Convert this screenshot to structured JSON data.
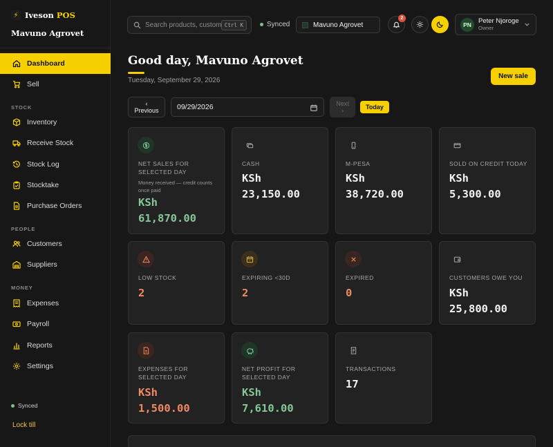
{
  "app": {
    "brand_first": "Iveson",
    "brand_second": "POS",
    "logo_glyph": "⚡",
    "store_name": "Mavuno Agrovet"
  },
  "colors": {
    "accent": "#f7d000",
    "green": "#86c79a",
    "orange": "#ef8a62",
    "background": "#171717",
    "card": "#222222"
  },
  "sidebar": {
    "dashboard": "Dashboard",
    "sell": "Sell",
    "sections": {
      "stock": "STOCK",
      "people": "PEOPLE",
      "money": "MONEY"
    },
    "stock_items": [
      "Inventory",
      "Receive Stock",
      "Stock Log",
      "Stocktake",
      "Purchase Orders"
    ],
    "people_items": [
      "Customers",
      "Suppliers"
    ],
    "money_items": [
      "Expenses",
      "Payroll",
      "Reports",
      "Settings"
    ],
    "status": "Synced",
    "lock": "Lock till"
  },
  "topbar": {
    "search_placeholder": "Search products, customers",
    "shortcut": "Ctrl K",
    "sync_status": "Synced",
    "store_selector": "Mavuno Agrovet",
    "notification_count": "2",
    "user_initials": "PN",
    "user_name": "Peter Njoroge",
    "user_role": "Owner"
  },
  "header": {
    "greeting": "Good day, Mavuno Agrovet",
    "date": "Tuesday, September 29, 2026",
    "new_sale": "New sale"
  },
  "date_nav": {
    "prev_arrow": "‹",
    "prev": "Previous",
    "date_value": "09/29/2026",
    "next_label": "Next",
    "next_arrow": "›",
    "today": "Today"
  },
  "cards": {
    "net_sales": {
      "label_line1": "NET SALES FOR",
      "label_line2": "SELECTED DAY",
      "note": "Money received — credit counts once paid",
      "currency": "KSh",
      "amount": "61,870.00",
      "icon": "dollar-icon"
    },
    "cash": {
      "label": "CASH",
      "currency": "KSh",
      "amount": "23,150.00",
      "icon": "cash-icon"
    },
    "mpesa": {
      "label": "M-PESA",
      "currency": "KSh",
      "amount": "38,720.00",
      "icon": "phone-icon"
    },
    "credit": {
      "label": "SOLD ON CREDIT TODAY",
      "currency": "KSh",
      "amount": "5,300.00",
      "icon": "card-icon"
    },
    "low_stock": {
      "label": "LOW STOCK",
      "value": "2",
      "icon": "warning-icon"
    },
    "expiring": {
      "label": "EXPIRING <30D",
      "value": "2",
      "icon": "calendar-icon"
    },
    "expired": {
      "label": "EXPIRED",
      "value": "0",
      "icon": "x-icon"
    },
    "owed": {
      "label": "CUSTOMERS OWE YOU",
      "currency": "KSh",
      "amount": "25,800.00",
      "icon": "wallet-icon"
    },
    "expenses": {
      "label_line1": "EXPENSES FOR",
      "label_line2": "SELECTED DAY",
      "currency": "KSh",
      "amount": "1,500.00",
      "icon": "receipt-icon"
    },
    "profit": {
      "label_line1": "NET PROFIT FOR",
      "label_line2": "SELECTED DAY",
      "currency": "KSh",
      "amount": "7,610.00",
      "icon": "piggy-bank-icon"
    },
    "transactions": {
      "label": "TRANSACTIONS",
      "value": "17",
      "icon": "receipt-icon"
    }
  }
}
